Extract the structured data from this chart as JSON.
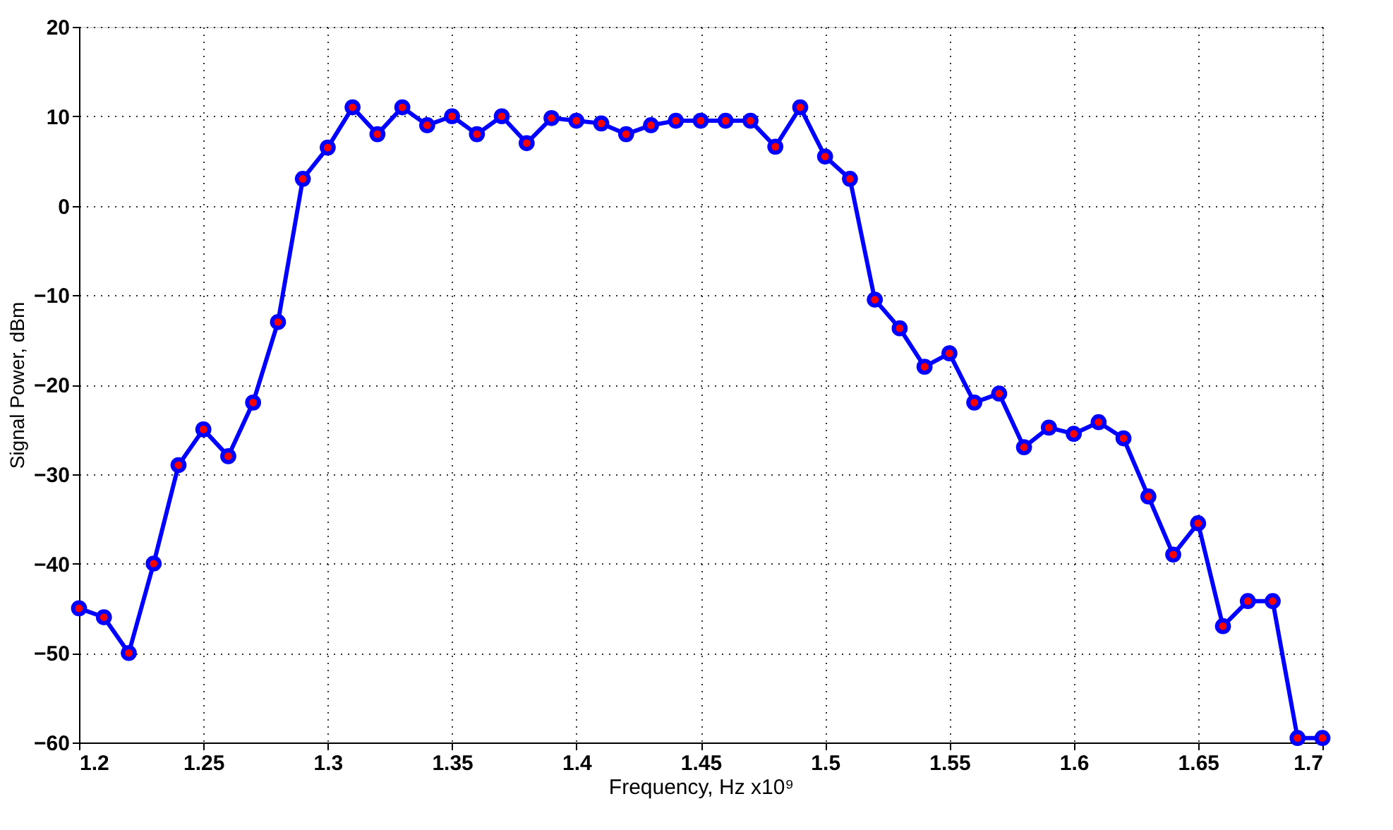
{
  "chart_data": {
    "type": "line",
    "xlabel": "Frequency, Hz x10⁹",
    "ylabel": "Signal Power, dBm",
    "x": [
      1.2,
      1.21,
      1.22,
      1.23,
      1.24,
      1.25,
      1.26,
      1.27,
      1.28,
      1.29,
      1.3,
      1.31,
      1.32,
      1.33,
      1.34,
      1.35,
      1.36,
      1.37,
      1.38,
      1.39,
      1.4,
      1.41,
      1.42,
      1.43,
      1.44,
      1.45,
      1.46,
      1.47,
      1.48,
      1.49,
      1.5,
      1.51,
      1.52,
      1.53,
      1.54,
      1.55,
      1.56,
      1.57,
      1.58,
      1.59,
      1.6,
      1.61,
      1.62,
      1.63,
      1.64,
      1.65,
      1.66,
      1.67,
      1.68,
      1.69,
      1.7
    ],
    "series": [
      {
        "color": "#0000ff",
        "values": [
          -45,
          -46,
          -50,
          -40,
          -29,
          -25,
          -28,
          -22,
          -13,
          3,
          6.5,
          11,
          8,
          11,
          9,
          10,
          8,
          10,
          7,
          9.8,
          9.5,
          9.2,
          8,
          9,
          9.5,
          9.5,
          9.5,
          9.5,
          6.6,
          11,
          5.5,
          3,
          -10.5,
          -13.7,
          -18,
          -16.5,
          -22,
          -21,
          -27,
          -24.8,
          -25.5,
          -24.2,
          -26,
          -32.5,
          -39,
          -35.5,
          -47,
          -44.2,
          -44.2,
          -59.5,
          -59.5
        ]
      }
    ],
    "xlim": [
      1.2,
      1.7
    ],
    "xticks": [
      1.2,
      1.25,
      1.3,
      1.35,
      1.4,
      1.45,
      1.5,
      1.55,
      1.6,
      1.65,
      1.7
    ],
    "ylim": [
      -60,
      20
    ],
    "yticks": [
      -60,
      -50,
      -40,
      -30,
      -20,
      -10,
      0,
      10,
      20
    ],
    "grid": true,
    "marker": "circle",
    "line_style": "solid"
  }
}
